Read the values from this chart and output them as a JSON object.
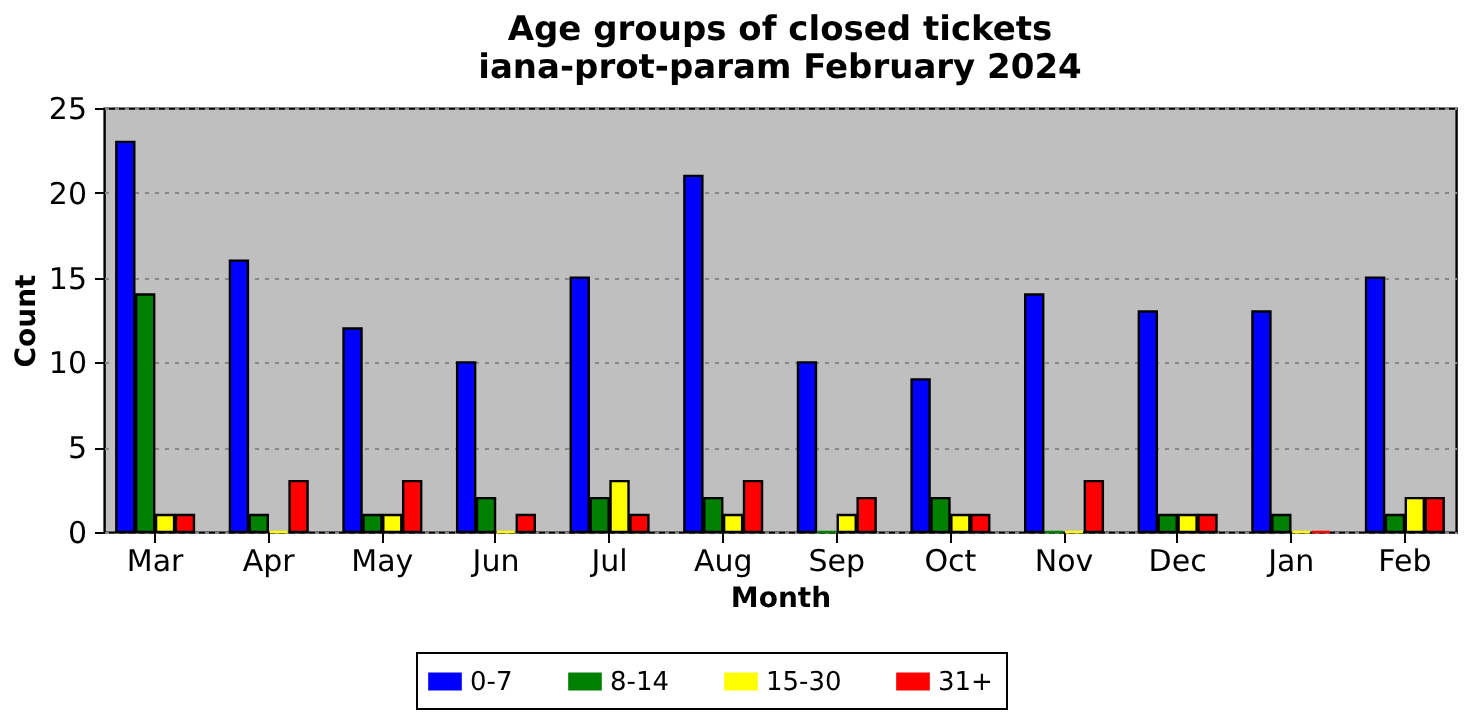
{
  "chart_data": {
    "type": "bar",
    "title": "Age groups of closed tickets\niana-prot-param February 2024",
    "xlabel": "Month",
    "ylabel": "Count",
    "categories": [
      "Mar",
      "Apr",
      "May",
      "Jun",
      "Jul",
      "Aug",
      "Sep",
      "Oct",
      "Nov",
      "Dec",
      "Jan",
      "Feb"
    ],
    "series": [
      {
        "name": "0-7",
        "color": "#0000ff",
        "values": [
          23,
          16,
          12,
          10,
          15,
          21,
          10,
          9,
          14,
          13,
          13,
          15
        ]
      },
      {
        "name": "8-14",
        "color": "#008000",
        "values": [
          14,
          1,
          1,
          2,
          2,
          2,
          0,
          2,
          0,
          1,
          1,
          1
        ]
      },
      {
        "name": "15-30",
        "color": "#ffff00",
        "values": [
          1,
          0,
          1,
          0,
          3,
          1,
          1,
          1,
          0,
          1,
          0,
          2
        ]
      },
      {
        "name": "31+",
        "color": "#ff0000",
        "values": [
          1,
          3,
          3,
          1,
          1,
          3,
          2,
          1,
          3,
          1,
          0,
          2
        ]
      }
    ],
    "ylim": [
      0,
      25
    ],
    "yticks": [
      0,
      5,
      10,
      15,
      20,
      25
    ],
    "grid": "y",
    "legend": "bottom"
  }
}
